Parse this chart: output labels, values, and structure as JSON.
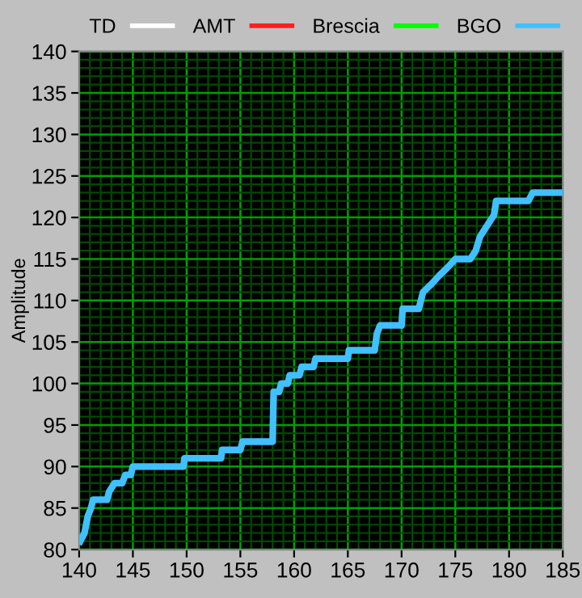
{
  "chart_data": {
    "type": "line",
    "ylabel": "Amplitude",
    "xlim": [
      140,
      185
    ],
    "ylim": [
      80,
      140
    ],
    "xticks": [
      140,
      {
        "value": 141,
        "label": null
      },
      {
        "value": 142,
        "label": null
      },
      {
        "value": 143,
        "label": null
      },
      {
        "value": 144,
        "label": null
      },
      145,
      {
        "value": 146,
        "label": null
      },
      {
        "value": 147,
        "label": null
      },
      {
        "value": 148,
        "label": null
      },
      {
        "value": 149,
        "label": null
      },
      150,
      {
        "value": 151,
        "label": null
      },
      {
        "value": 152,
        "label": null
      },
      {
        "value": 153,
        "label": null
      },
      {
        "value": 154,
        "label": null
      },
      155,
      {
        "value": 156,
        "label": null
      },
      {
        "value": 157,
        "label": null
      },
      {
        "value": 158,
        "label": null
      },
      {
        "value": 159,
        "label": null
      },
      160,
      {
        "value": 161,
        "label": null
      },
      {
        "value": 162,
        "label": null
      },
      {
        "value": 163,
        "label": null
      },
      {
        "value": 164,
        "label": null
      },
      165,
      {
        "value": 166,
        "label": null
      },
      {
        "value": 167,
        "label": null
      },
      {
        "value": 168,
        "label": null
      },
      {
        "value": 169,
        "label": null
      },
      170,
      {
        "value": 171,
        "label": null
      },
      {
        "value": 172,
        "label": null
      },
      {
        "value": 173,
        "label": null
      },
      {
        "value": 174,
        "label": null
      },
      175,
      {
        "value": 176,
        "label": null
      },
      {
        "value": 177,
        "label": null
      },
      {
        "value": 178,
        "label": null
      },
      {
        "value": 179,
        "label": null
      },
      180,
      {
        "value": 181,
        "label": null
      },
      {
        "value": 182,
        "label": null
      },
      {
        "value": 183,
        "label": null
      },
      {
        "value": 184,
        "label": null
      },
      185
    ],
    "yticks": [
      80,
      {
        "value": 81,
        "label": null
      },
      {
        "value": 82,
        "label": null
      },
      {
        "value": 83,
        "label": null
      },
      {
        "value": 84,
        "label": null
      },
      85,
      {
        "value": 86,
        "label": null
      },
      {
        "value": 87,
        "label": null
      },
      {
        "value": 88,
        "label": null
      },
      {
        "value": 89,
        "label": null
      },
      90,
      {
        "value": 91,
        "label": null
      },
      {
        "value": 92,
        "label": null
      },
      {
        "value": 93,
        "label": null
      },
      {
        "value": 94,
        "label": null
      },
      95,
      {
        "value": 96,
        "label": null
      },
      {
        "value": 97,
        "label": null
      },
      {
        "value": 98,
        "label": null
      },
      {
        "value": 99,
        "label": null
      },
      100,
      {
        "value": 101,
        "label": null
      },
      {
        "value": 102,
        "label": null
      },
      {
        "value": 103,
        "label": null
      },
      {
        "value": 104,
        "label": null
      },
      105,
      {
        "value": 106,
        "label": null
      },
      {
        "value": 107,
        "label": null
      },
      {
        "value": 108,
        "label": null
      },
      {
        "value": 109,
        "label": null
      },
      110,
      {
        "value": 111,
        "label": null
      },
      {
        "value": 112,
        "label": null
      },
      {
        "value": 113,
        "label": null
      },
      {
        "value": 114,
        "label": null
      },
      115,
      {
        "value": 116,
        "label": null
      },
      {
        "value": 117,
        "label": null
      },
      {
        "value": 118,
        "label": null
      },
      {
        "value": 119,
        "label": null
      },
      120,
      {
        "value": 121,
        "label": null
      },
      {
        "value": 122,
        "label": null
      },
      {
        "value": 123,
        "label": null
      },
      {
        "value": 124,
        "label": null
      },
      125,
      {
        "value": 126,
        "label": null
      },
      {
        "value": 127,
        "label": null
      },
      {
        "value": 128,
        "label": null
      },
      {
        "value": 129,
        "label": null
      },
      130,
      {
        "value": 131,
        "label": null
      },
      {
        "value": 132,
        "label": null
      },
      {
        "value": 133,
        "label": null
      },
      {
        "value": 134,
        "label": null
      },
      135,
      {
        "value": 136,
        "label": null
      },
      {
        "value": 137,
        "label": null
      },
      {
        "value": 138,
        "label": null
      },
      {
        "value": 139,
        "label": null
      },
      140
    ],
    "grid": true,
    "legend": "top",
    "marker": "none",
    "line_style": "solid",
    "series": [
      {
        "name": "TD",
        "color": "#ffffff"
      },
      {
        "name": "AMT",
        "color": "#ff2020"
      },
      {
        "name": "Brescia",
        "color": "#00ff00"
      },
      {
        "name": "BGO",
        "color": "#40c0ff",
        "x": [
          140.1,
          140.5,
          140.8,
          141.1,
          141.3,
          142.6,
          142.8,
          143.3,
          144.0,
          144.3,
          144.8,
          145.0,
          149.7,
          149.8,
          153.2,
          153.3,
          155.0,
          155.2,
          158.0,
          158.1,
          158.6,
          158.8,
          159.4,
          159.6,
          160.5,
          160.7,
          161.8,
          162.0,
          165.0,
          165.1,
          167.5,
          167.7,
          168.0,
          170.0,
          170.1,
          171.6,
          172.0,
          172.8,
          173.5,
          174.3,
          175.0,
          176.4,
          176.9,
          177.3,
          178.1,
          178.6,
          178.8,
          181.8,
          182.2,
          185.0
        ],
        "values": [
          81,
          82,
          84,
          85,
          86,
          86,
          87,
          88,
          88,
          89,
          89,
          90,
          90,
          91,
          91,
          92,
          92,
          93,
          93,
          99,
          99,
          100,
          100,
          101,
          101,
          102,
          102,
          103,
          103,
          104,
          104,
          106,
          107,
          107,
          109,
          109,
          111,
          112,
          113,
          114,
          115,
          115,
          116,
          117.7,
          119.3,
          120.3,
          122,
          122,
          123,
          123
        ]
      }
    ]
  }
}
